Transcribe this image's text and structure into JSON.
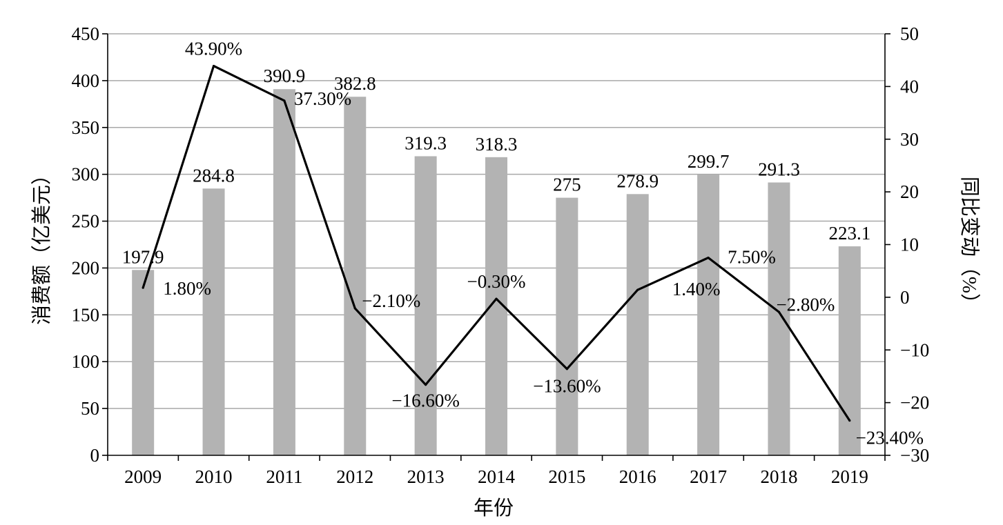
{
  "chart_data": {
    "type": "bar",
    "categories": [
      "2009",
      "2010",
      "2011",
      "2012",
      "2013",
      "2014",
      "2015",
      "2016",
      "2017",
      "2018",
      "2019"
    ],
    "series": [
      {
        "type": "bar",
        "axis": "left",
        "color": "#b3b3b3",
        "values": [
          197.9,
          284.8,
          390.9,
          382.8,
          319.3,
          318.3,
          275,
          278.9,
          299.7,
          291.3,
          223.1
        ],
        "labels": [
          "197.9",
          "284.8",
          "390.9",
          "382.8",
          "319.3",
          "318.3",
          "275",
          "278.9",
          "299.7",
          "291.3",
          "223.1"
        ]
      },
      {
        "type": "line",
        "axis": "right",
        "color": "#000000",
        "values": [
          1.8,
          43.9,
          37.3,
          -2.1,
          -16.6,
          -0.3,
          -13.6,
          1.4,
          7.5,
          -2.8,
          -23.4
        ],
        "labels": [
          "1.80%",
          "43.90%",
          "37.30%",
          "−2.10%",
          "−16.60%",
          "−0.30%",
          "−13.60%",
          "1.40%",
          "7.50%",
          "−2.80%",
          "−23.40%"
        ]
      }
    ],
    "xlabel": "年份",
    "ylabel": "消费额（亿美元）",
    "y2label": "同比变动（%）",
    "ylim": [
      0,
      450
    ],
    "y2lim": [
      -30,
      50
    ],
    "yticks": [
      "0",
      "50",
      "100",
      "150",
      "200",
      "250",
      "300",
      "350",
      "400",
      "450"
    ],
    "y2ticks": [
      "−30",
      "−20",
      "−10",
      "0",
      "10",
      "20",
      "30",
      "40",
      "50"
    ],
    "grid": true,
    "legend": "none"
  }
}
